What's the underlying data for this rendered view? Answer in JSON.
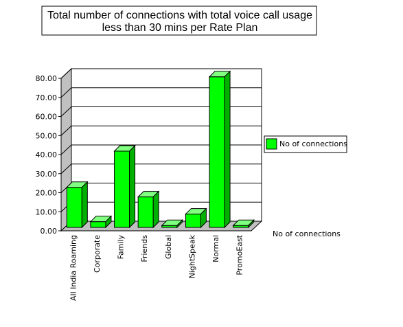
{
  "chart_data": {
    "type": "bar",
    "title": "Total number of connections with total voice call usage less than 30 mins per Rate Plan",
    "title_lines": [
      "Total number of connections with total voice call usage",
      "less than 30 mins per Rate Plan"
    ],
    "categories": [
      "All India Roaming",
      "Corporate",
      "Family",
      "Friends",
      "Global",
      "NightSpeak",
      "Normal",
      "PromoEast"
    ],
    "series": [
      {
        "name": "No of connections",
        "values": [
          21,
          3,
          40,
          16,
          1,
          7,
          79,
          1
        ],
        "color": "#00ff00"
      }
    ],
    "y_ticks": [
      "0.00",
      "10.00",
      "20.00",
      "30.00",
      "40.00",
      "50.00",
      "60.00",
      "70.00",
      "80.00"
    ],
    "ylim": [
      0,
      80
    ],
    "xlabel": "",
    "ylabel": "",
    "axis_title": "No of connections",
    "legend_label": "No of connections",
    "legend_position": "right",
    "grid": true,
    "three_d": true
  }
}
